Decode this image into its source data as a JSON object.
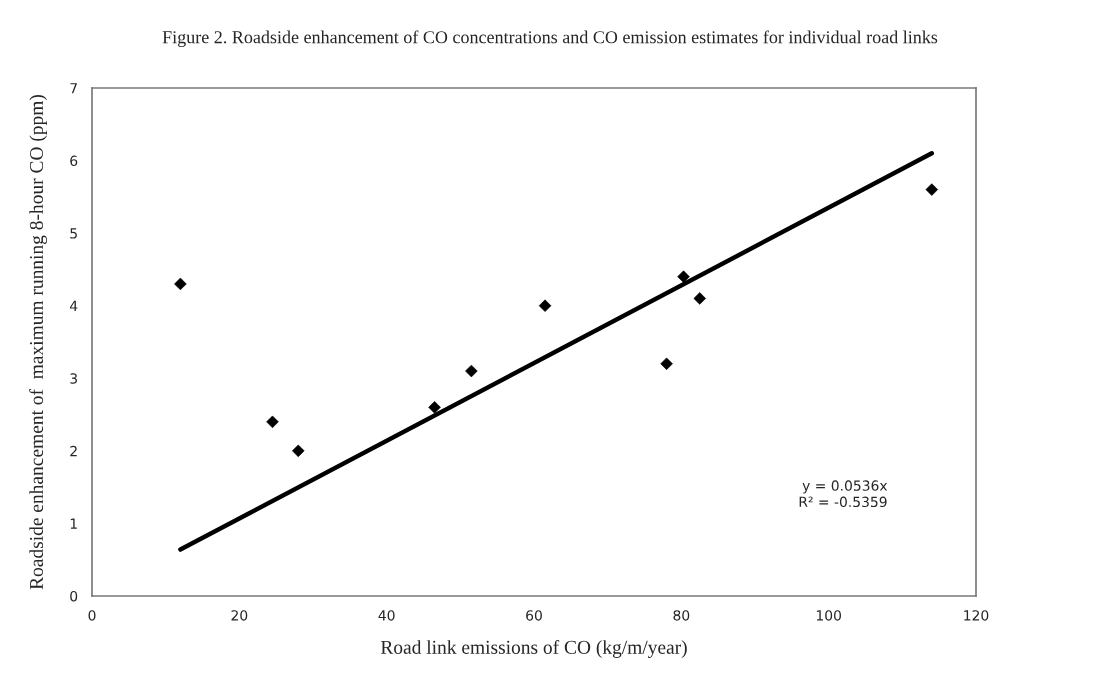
{
  "chart_data": {
    "type": "scatter",
    "title": "Figure 2. Roadside enhancement of CO concentrations and CO emission estimates for individual road links",
    "xlabel": "Road link emissions of CO (kg/m/year)",
    "ylabel": "Roadside enhancement of  maximum running 8-hour CO (ppm)",
    "x": [
      12,
      24.5,
      28,
      46.5,
      51.5,
      61.5,
      78,
      80.3,
      82.5,
      114
    ],
    "series": [
      {
        "color": "#000000",
        "marker": "diamond",
        "values": [
          4.3,
          2.4,
          2.0,
          2.6,
          3.1,
          4.0,
          3.2,
          4.4,
          4.1,
          5.6
        ]
      },
      {
        "type": "line",
        "color": "#000000",
        "marker": "none",
        "line_style": "solid",
        "x": [
          12,
          114
        ],
        "values": [
          0.64,
          6.1
        ]
      }
    ],
    "annotations": [
      "y = 0.0536x",
      "R² = -0.5359"
    ],
    "xlim": [
      0,
      120
    ],
    "xticks": [
      0,
      20,
      40,
      60,
      80,
      100,
      120
    ],
    "ylim": [
      0,
      7
    ],
    "yticks": [
      0,
      1,
      2,
      3,
      4,
      5,
      6,
      7
    ],
    "grid": false,
    "legend": false
  }
}
